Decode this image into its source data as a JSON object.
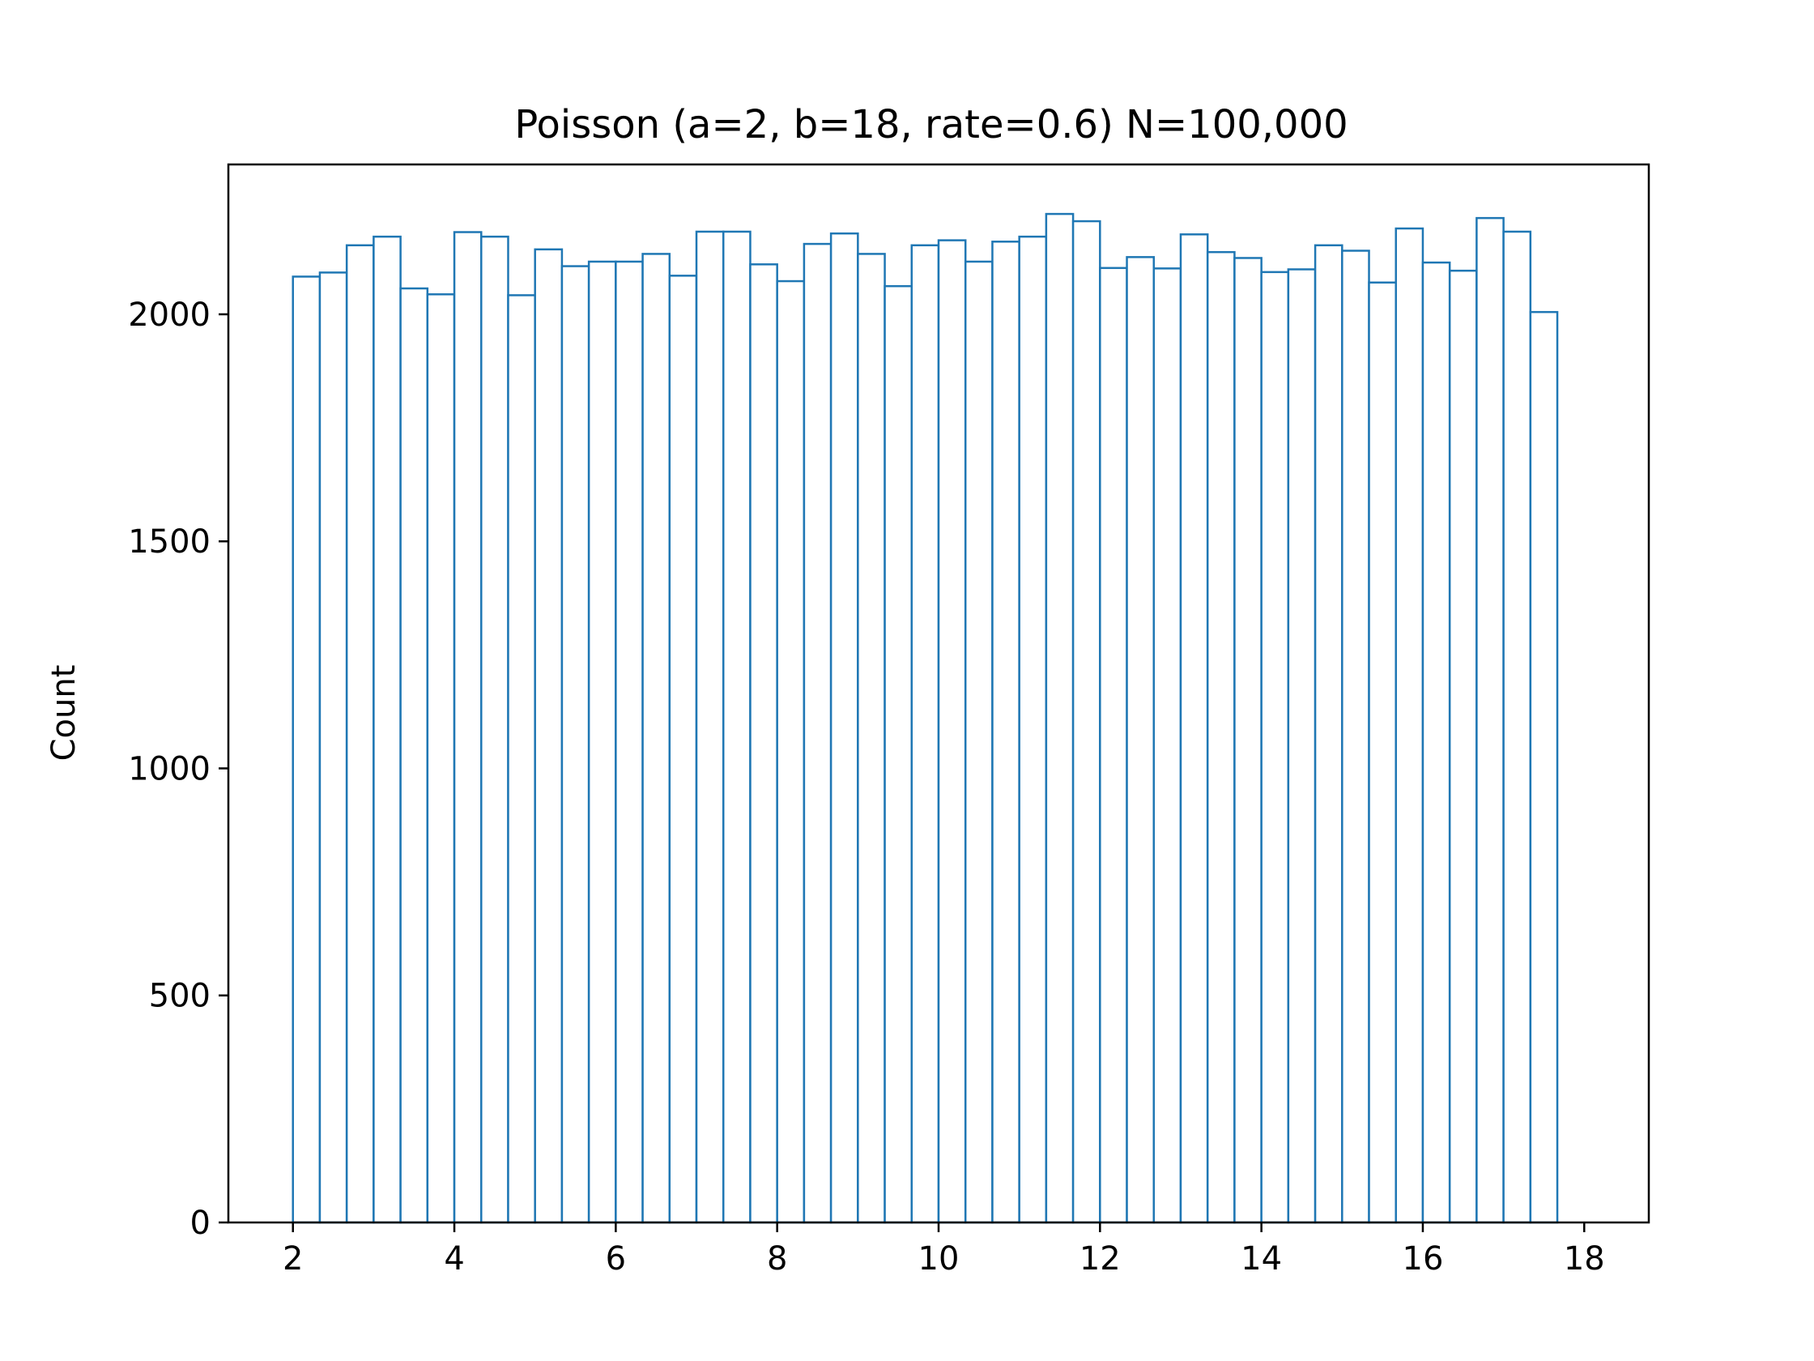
{
  "chart_data": {
    "type": "bar",
    "title": "Poisson (a=2, b=18, rate=0.6) N=100,000",
    "xlabel": "",
    "ylabel": "Count",
    "xlim": [
      1.2,
      18.8
    ],
    "ylim": [
      0,
      2330
    ],
    "xticks": [
      2,
      4,
      6,
      8,
      10,
      12,
      14,
      16,
      18
    ],
    "yticks": [
      0,
      500,
      1000,
      1500,
      2000
    ],
    "bin_start": 2,
    "bin_end": 18,
    "bins": 48,
    "values": [
      2083,
      2092,
      2152,
      2171,
      2057,
      2044,
      2181,
      2171,
      2042,
      2143,
      2106,
      2116,
      2116,
      2133,
      2085,
      2182,
      2182,
      2110,
      2073,
      2155,
      2178,
      2133,
      2062,
      2152,
      2163,
      2116,
      2160,
      2171,
      2221,
      2205,
      2102,
      2126,
      2101,
      2176,
      2137,
      2124,
      2093,
      2099,
      2152,
      2140,
      2070,
      2189,
      2114,
      2096,
      2212,
      2182,
      2005
    ],
    "grid": false,
    "style": "step-outline",
    "colors": {
      "bar_edge": "#1f77b4",
      "bar_fill": "#ffffff",
      "axes": "#000000"
    }
  }
}
